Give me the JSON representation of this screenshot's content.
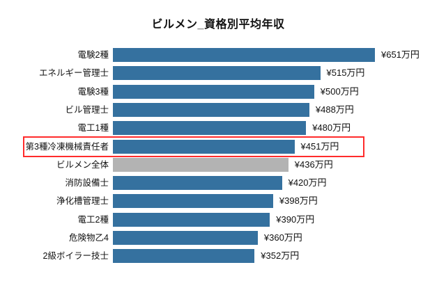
{
  "title": "ビルメン_資格別平均年収",
  "chart_data": {
    "type": "bar",
    "orientation": "horizontal",
    "title": "ビルメン_資格別平均年収",
    "categories": [
      "電験2種",
      "エネルギー管理士",
      "電験3種",
      "ビル管理士",
      "電工1種",
      "第3種冷凍機械責任者",
      "ビルメン全体",
      "消防設備士",
      "浄化槽管理士",
      "電工2種",
      "危険物乙4",
      "2級ボイラー技士"
    ],
    "values": [
      651,
      515,
      500,
      488,
      480,
      451,
      436,
      420,
      398,
      390,
      360,
      352
    ],
    "value_labels": [
      "¥651万円",
      "¥515万円",
      "¥500万円",
      "¥488万円",
      "¥480万円",
      "¥451万円",
      "¥436万円",
      "¥420万円",
      "¥398万円",
      "¥390万円",
      "¥360万円",
      "¥352万円"
    ],
    "unit": "万円",
    "xlim": [
      0,
      700
    ],
    "grid": false,
    "legend": "none",
    "colors": {
      "bar": "#35719f",
      "overall_bar": "#b3b3b3",
      "highlight_border": "#ff2b2b",
      "background": "#ffffff",
      "text": "#111111"
    },
    "overall_row_index": 6,
    "highlight": {
      "row_index": 5,
      "category": "第3種冷凍機械責任者",
      "value_label": "¥451万円"
    }
  }
}
